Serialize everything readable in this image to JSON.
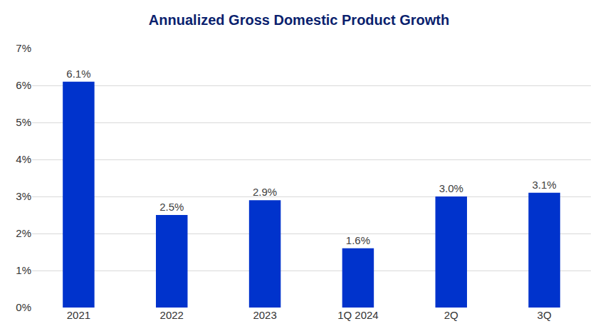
{
  "chart_data": {
    "type": "bar",
    "title": "Annualized Gross Domestic Product Growth",
    "categories": [
      "2021",
      "2022",
      "2023",
      "1Q 2024",
      "2Q",
      "3Q"
    ],
    "values": [
      6.1,
      2.5,
      2.9,
      1.6,
      3.0,
      3.1
    ],
    "value_labels": [
      "6.1%",
      "2.5%",
      "2.9%",
      "1.6%",
      "3.0%",
      "3.1%"
    ],
    "color": "#0033cc",
    "ylim": [
      0,
      7
    ],
    "yticks": [
      {
        "value": 0,
        "label": "0%"
      },
      {
        "value": 1,
        "label": "1%"
      },
      {
        "value": 2,
        "label": "2%"
      },
      {
        "value": 3,
        "label": "3%"
      },
      {
        "value": 4,
        "label": "4%"
      },
      {
        "value": 5,
        "label": "5%"
      },
      {
        "value": 6,
        "label": "6%"
      },
      {
        "value": 7,
        "label": "7%"
      }
    ],
    "grid": true,
    "data_labels": true
  }
}
